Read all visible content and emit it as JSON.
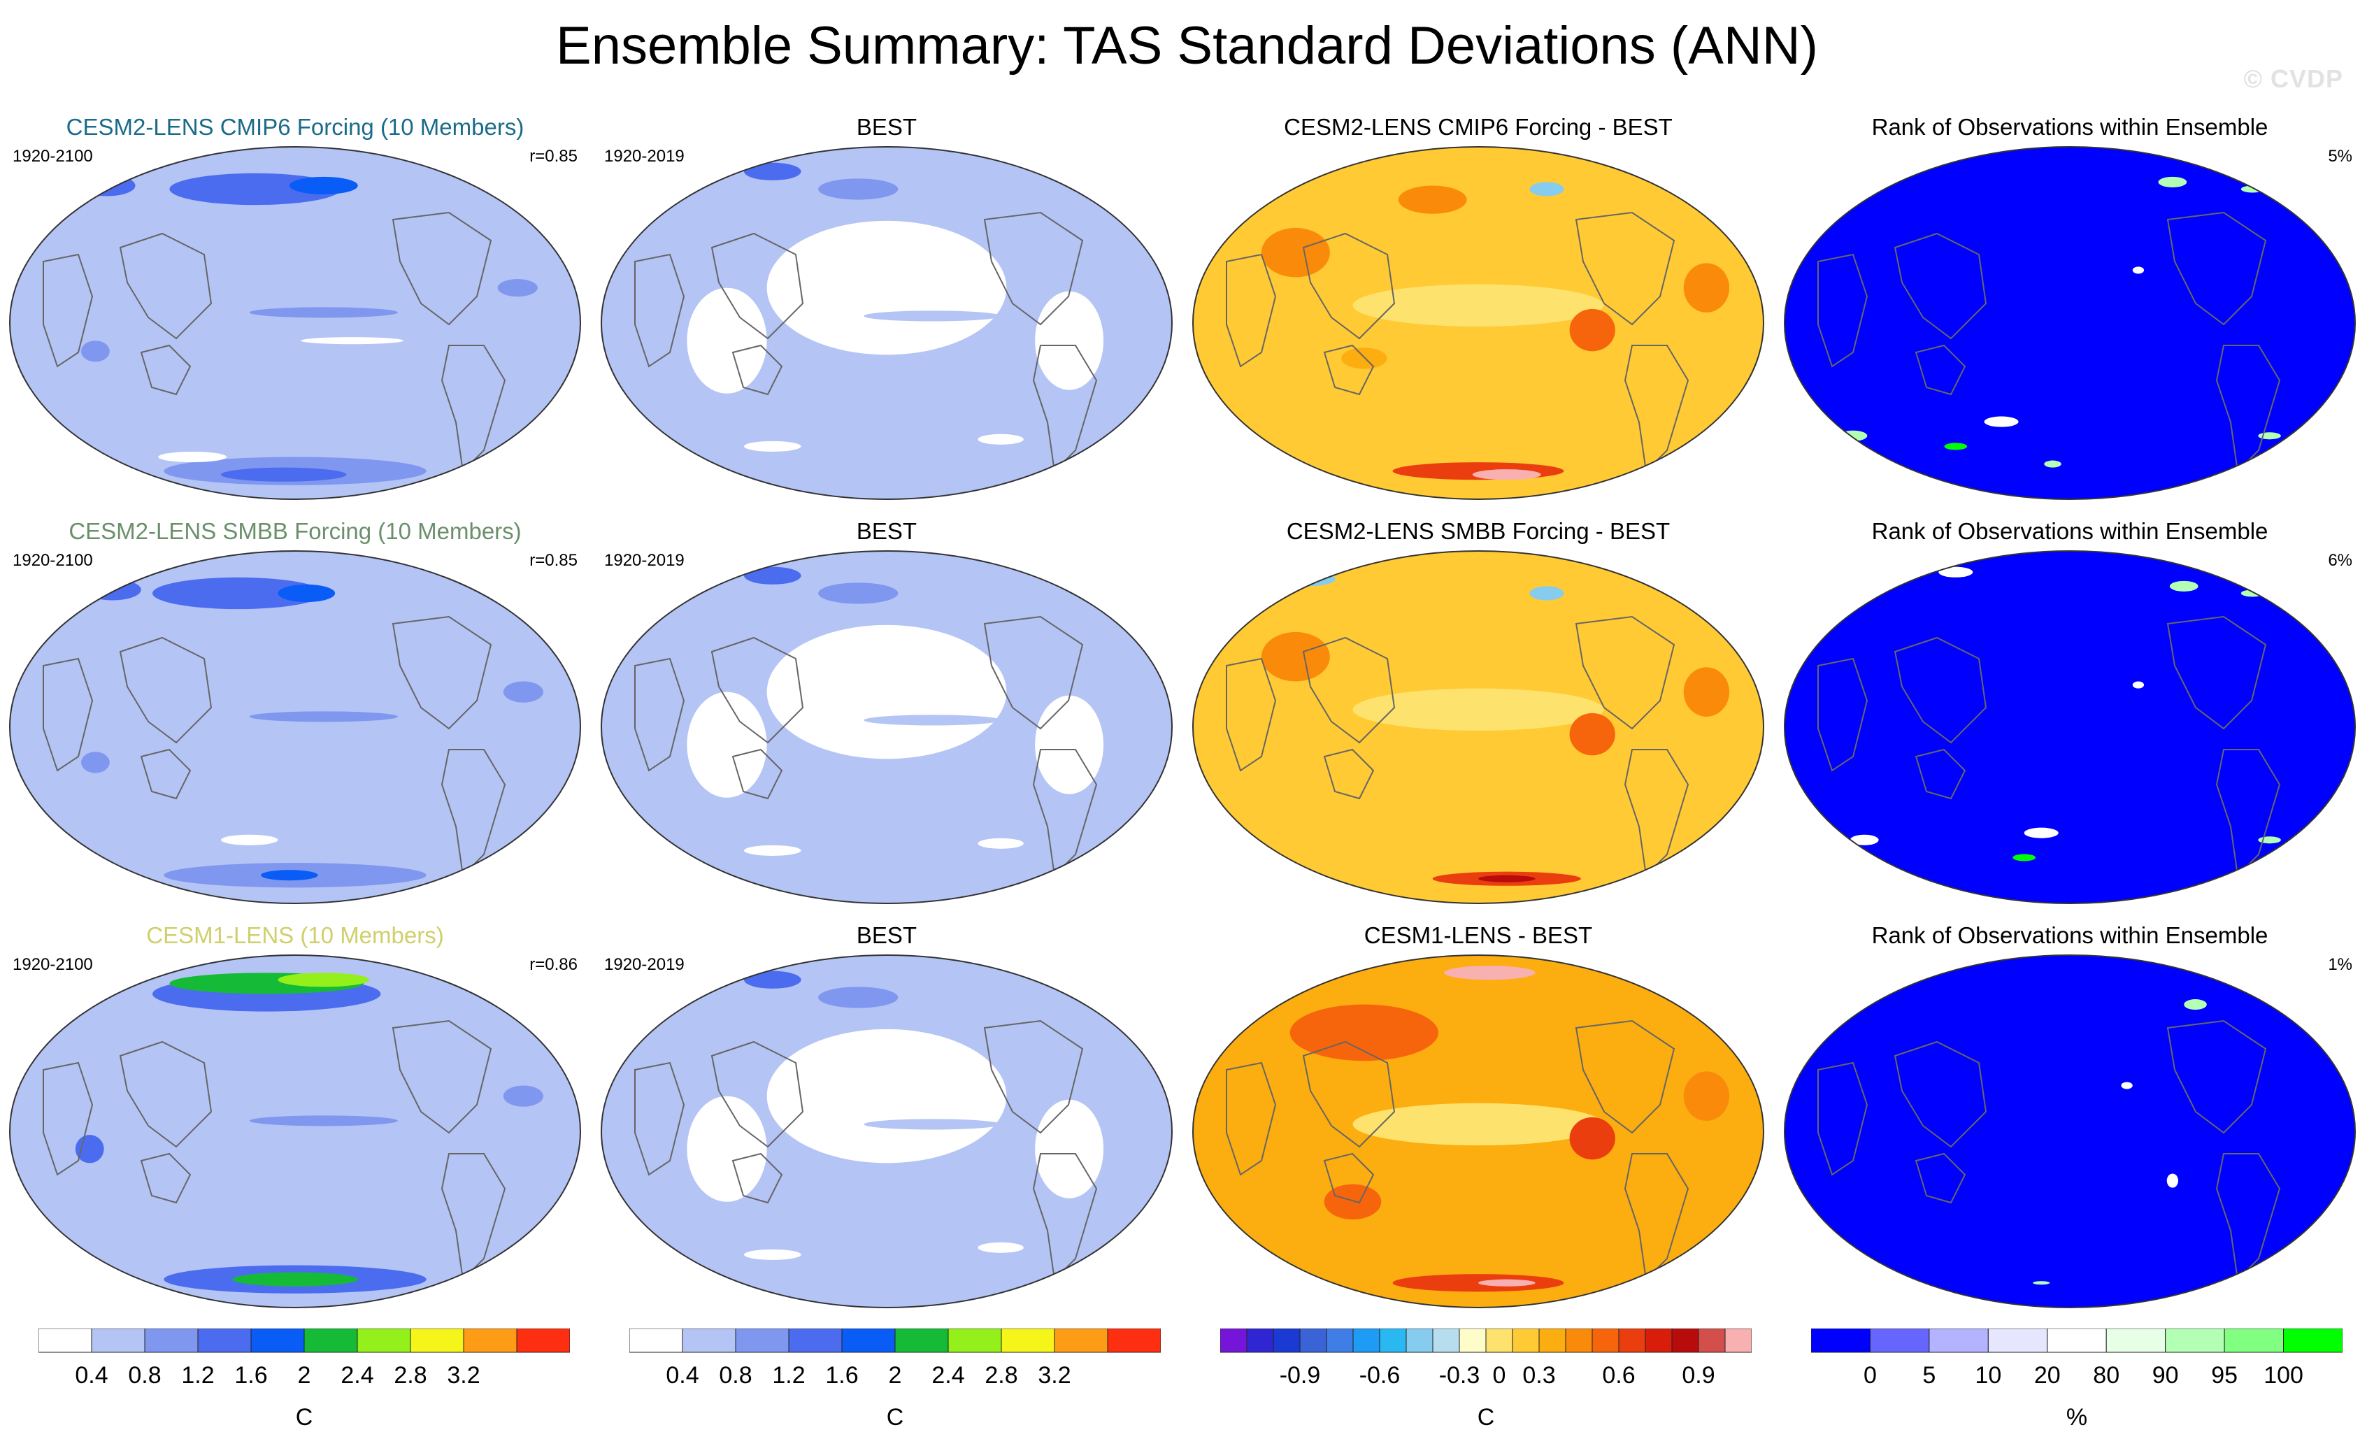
{
  "title": "Ensemble Summary: TAS Standard Deviations (ANN)",
  "watermark": "© CVDP",
  "colors": {
    "sd_scale": [
      "#ffffff",
      "#b4c4f5",
      "#7f97ef",
      "#4c6cf0",
      "#0a5cf6",
      "#15bb36",
      "#94f01b",
      "#f6f51a",
      "#ff9c16",
      "#fe2f10"
    ],
    "diff_scale": [
      "#7515d9",
      "#3025d3",
      "#1b3ad3",
      "#3a63d8",
      "#3f7de7",
      "#1e9bf5",
      "#29b8f2",
      "#86ccef",
      "#b6deef",
      "#fefdc9",
      "#fde26d",
      "#ffca33",
      "#fcad0f",
      "#fa8b0a",
      "#f6650c",
      "#ea3e0f",
      "#d81e0b",
      "#b70c0b",
      "#d34f4c",
      "#f9b0b0"
    ],
    "rank_scale": [
      "#0000ff",
      "#6666ff",
      "#b3b3ff",
      "#e6e6ff",
      "#ffffff",
      "#e6ffe6",
      "#b3ffb3",
      "#80ff80",
      "#00ff00"
    ],
    "coast": "#666666"
  },
  "rows": [
    {
      "model": {
        "title": "CESM2-LENS CMIP6 Forcing (10 Members)",
        "title_color": "#1a6b8a",
        "period": "1920-2100",
        "corr": "r=0.85"
      },
      "obs": {
        "title": "BEST",
        "period": "1920-2019"
      },
      "diff": {
        "title": "CESM2-LENS CMIP6 Forcing - BEST"
      },
      "rank": {
        "title": "Rank of Observations within Ensemble",
        "pct": "5%"
      }
    },
    {
      "model": {
        "title": "CESM2-LENS SMBB Forcing (10 Members)",
        "title_color": "#6b8f6b",
        "period": "1920-2100",
        "corr": "r=0.85"
      },
      "obs": {
        "title": "BEST",
        "period": "1920-2019"
      },
      "diff": {
        "title": "CESM2-LENS SMBB Forcing - BEST"
      },
      "rank": {
        "title": "Rank of Observations within Ensemble",
        "pct": "6%"
      }
    },
    {
      "model": {
        "title": "CESM1-LENS (10 Members)",
        "title_color": "#cfcf6c",
        "period": "1920-2100",
        "corr": "r=0.86"
      },
      "obs": {
        "title": "BEST",
        "period": "1920-2019"
      },
      "diff": {
        "title": "CESM1-LENS - BEST"
      },
      "rank": {
        "title": "Rank of Observations within Ensemble",
        "pct": "1%"
      }
    }
  ],
  "chart_data": {
    "type": "heatmap",
    "title": "Ensemble Summary: TAS Standard Deviations (ANN)",
    "projection": "Robinson, Pacific-centered",
    "panels_per_row": [
      "Model ensemble-mean TAS standard deviation",
      "Observed (BEST)",
      "Model - BEST difference",
      "Rank of observations within ensemble"
    ],
    "colorbars": [
      {
        "name": "sd_model",
        "labels": [
          "0.4",
          "0.8",
          "1.2",
          "1.6",
          "2",
          "2.4",
          "2.8",
          "3.2"
        ],
        "unit": "C"
      },
      {
        "name": "sd_obs",
        "labels": [
          "0.4",
          "0.8",
          "1.2",
          "1.6",
          "2",
          "2.4",
          "2.8",
          "3.2"
        ],
        "unit": "C"
      },
      {
        "name": "difference",
        "labels": [
          "-0.9",
          "-0.6",
          "-0.3",
          "0",
          "0.3",
          "0.6",
          "0.9"
        ],
        "unit": "C"
      },
      {
        "name": "rank",
        "labels": [
          "0",
          "5",
          "10",
          "20",
          "80",
          "90",
          "95",
          "100"
        ],
        "unit": "%"
      }
    ]
  }
}
